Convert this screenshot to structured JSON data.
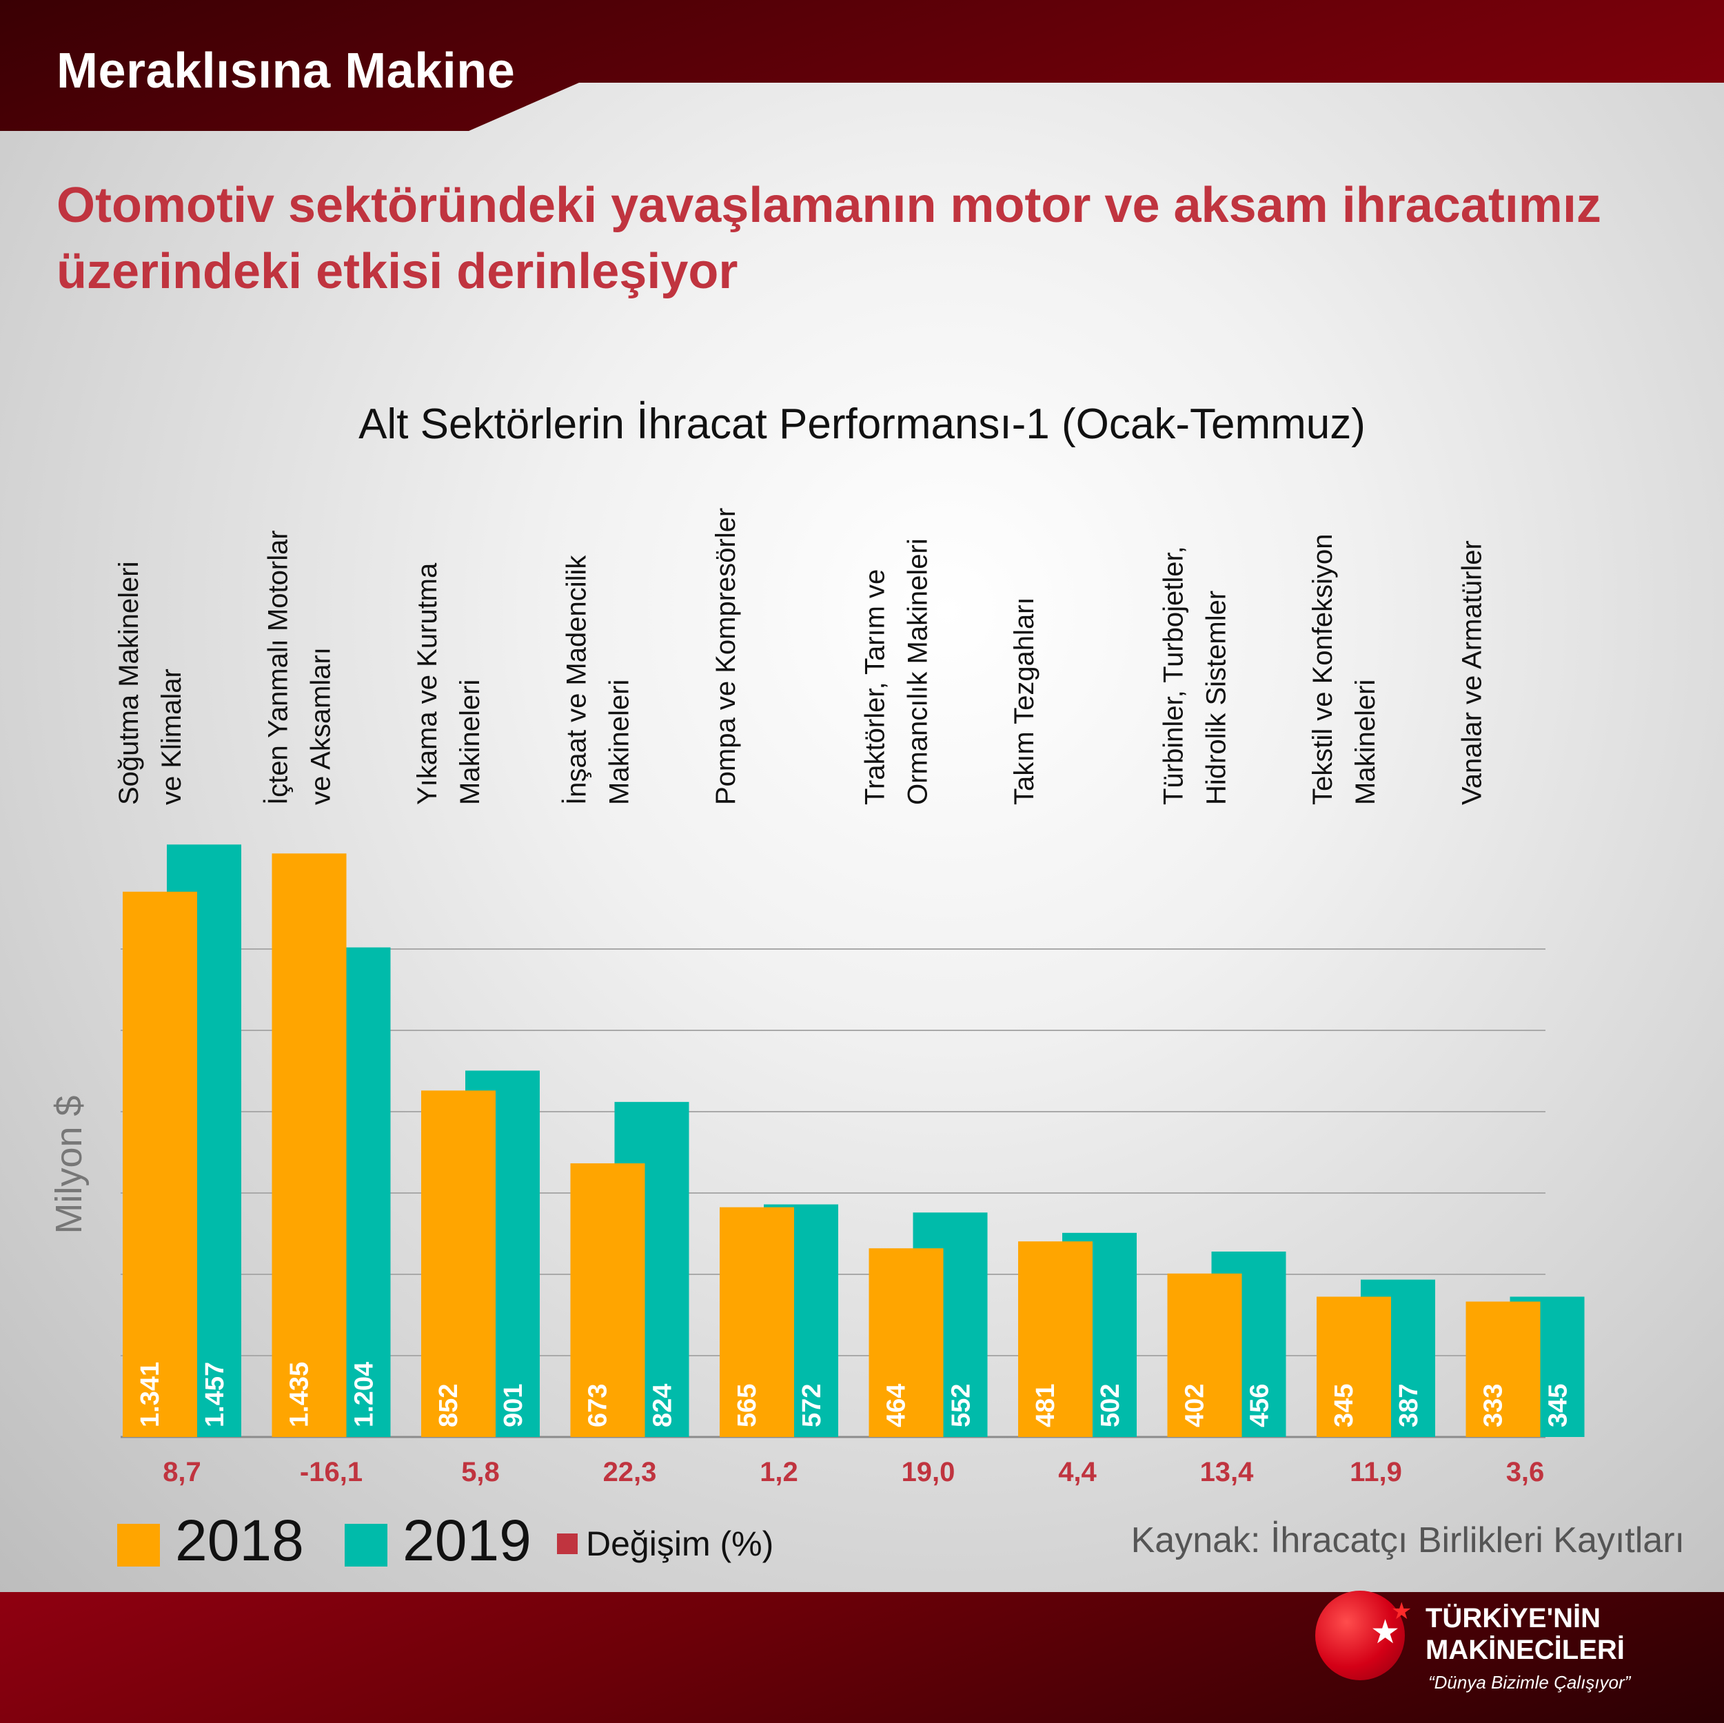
{
  "header": {
    "title": "Meraklısına Makine"
  },
  "headline": "Otomotiv sektöründeki yavaşlamanın motor ve aksam ihracatımız üzerindeki etkisi derinleşiyor",
  "source": "Kaynak: İhracatçı Birlikleri Kayıtları",
  "logo": {
    "line1": "TÜRKİYE'NİN",
    "line2": "MAKİNECİLERİ",
    "tagline": "“Dünya Bizimle Çalışıyor”"
  },
  "colors": {
    "series_2018": "#FFA500",
    "series_2019": "#00BBAA",
    "change": "#C0343F",
    "headline": "#C0343F"
  },
  "chart_data": {
    "type": "bar",
    "title": "Alt Sektörlerin İhracat Performansı-1 (Ocak-Temmuz)",
    "ylabel": "Milyon $",
    "xlabel": "",
    "ylim": [
      0,
      1500
    ],
    "grid": true,
    "legend_position": "bottom-left",
    "categories": [
      [
        "Soğutma Makineleri",
        "ve Klimalar"
      ],
      [
        "İçten Yanmalı Motorlar",
        "ve Aksamları"
      ],
      [
        "Yıkama ve Kurutma",
        "Makineleri"
      ],
      [
        "İnşaat ve Madencilik",
        "Makineleri"
      ],
      [
        "Pompa ve Kompresörler"
      ],
      [
        "Traktörler, Tarım ve",
        "Ormancılık Makineleri"
      ],
      [
        "Takım Tezgahları"
      ],
      [
        "Türbinler, Turbojetler,",
        "Hidrolik Sistemler"
      ],
      [
        "Tekstil ve Konfeksiyon",
        "Makineleri"
      ],
      [
        "Vanalar ve Armatürler"
      ]
    ],
    "series": [
      {
        "name": "2018",
        "values": [
          1341,
          1435,
          852,
          673,
          565,
          464,
          481,
          402,
          345,
          333
        ],
        "labels": [
          "1.341",
          "1.435",
          "852",
          "673",
          "565",
          "464",
          "481",
          "402",
          "345",
          "333"
        ]
      },
      {
        "name": "2019",
        "values": [
          1457,
          1204,
          901,
          824,
          572,
          552,
          502,
          456,
          387,
          345
        ],
        "labels": [
          "1.457",
          "1.204",
          "901",
          "824",
          "572",
          "552",
          "502",
          "456",
          "387",
          "345"
        ]
      }
    ],
    "change": {
      "name": "Değişim (%)",
      "labels": [
        "8,7",
        "-16,1",
        "5,8",
        "22,3",
        "1,2",
        "19,0",
        "4,4",
        "13,4",
        "11,9",
        "3,6"
      ]
    }
  }
}
